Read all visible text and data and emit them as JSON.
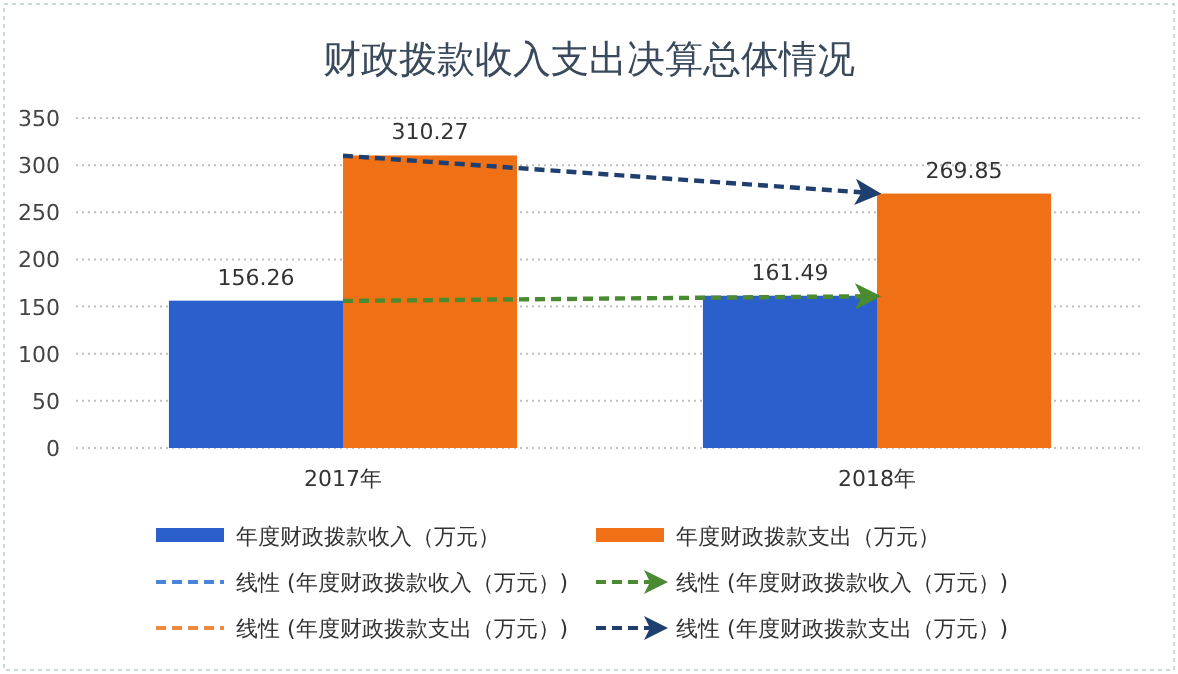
{
  "chart_data": {
    "type": "bar",
    "title": "财政拨款收入支出决算总体情况",
    "categories": [
      "2017年",
      "2018年"
    ],
    "series": [
      {
        "name": "年度财政拨款收入（万元）",
        "color": "#2b60cc",
        "values": [
          156.26,
          161.49
        ],
        "value_labels": [
          "156.26",
          "161.49"
        ]
      },
      {
        "name": "年度财政拨款支出（万元）",
        "color": "#f07015",
        "values": [
          310.27,
          269.85
        ],
        "value_labels": [
          "310.27",
          "269.85"
        ]
      },
      {
        "name": "线性 (年度财政拨款收入（万元）)",
        "type": "line",
        "line_style": "dashed",
        "color": "#4a86d8",
        "values": [
          null,
          null
        ]
      },
      {
        "name": "线性 (年度财政拨款收入（万元）)",
        "type": "line",
        "line_style": "dashed",
        "color": "#4a8a30",
        "values": [
          156,
          161
        ]
      },
      {
        "name": "线性 (年度财政拨款支出（万元）)",
        "type": "line",
        "line_style": "dashed",
        "color": "#f08a40",
        "values": [
          null,
          null
        ]
      },
      {
        "name": "线性 (年度财政拨款支出（万元）)",
        "type": "line",
        "line_style": "dashed",
        "color": "#1f3f6e",
        "values": [
          310,
          270
        ]
      }
    ],
    "ylim": [
      0,
      350
    ],
    "yticks": [
      0,
      50,
      100,
      150,
      200,
      250,
      300,
      350
    ],
    "grid": "y",
    "legend": "bottom"
  }
}
